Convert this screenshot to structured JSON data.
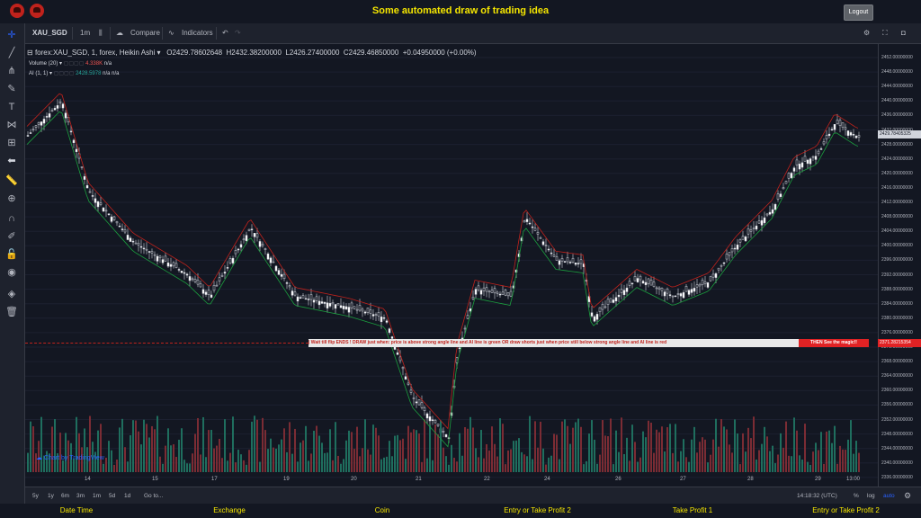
{
  "app": {
    "title": "Some automated draw of trading idea",
    "logout_label": "Logout"
  },
  "toolbar": {
    "symbol": "XAU_SGD",
    "interval": "1m",
    "compare_label": "Compare",
    "indicators_label": "Indicators"
  },
  "legend": {
    "main": "forex:XAU_SGD, 1, forex, Heikin Ashi ▾",
    "open": "O2429.78602648",
    "high": "H2432.38200000",
    "low": "L2426.27400000",
    "close": "C2429.46850000",
    "change": "+0.04950000 (+0.00%)",
    "volume_label": "Volume (20) ▾",
    "volume_value": "4.338K",
    "volume_na": "n/a",
    "ai_label": "AI (1, 1) ▾",
    "ai_value": "2428.5978",
    "ai_na1": "n/a",
    "ai_na2": "n/a"
  },
  "price_axis": {
    "labels": [
      "2452.00000000",
      "2448.00000000",
      "2444.00000000",
      "2440.00000000",
      "2436.00000000",
      "2432.00000000",
      "2428.00000000",
      "2424.00000000",
      "2420.00000000",
      "2416.00000000",
      "2412.00000000",
      "2408.00000000",
      "2404.00000000",
      "2400.00000000",
      "2396.00000000",
      "2392.00000000",
      "2388.00000000",
      "2384.00000000",
      "2380.00000000",
      "2376.00000000",
      "2372.00000000",
      "2368.00000000",
      "2364.00000000",
      "2360.00000000",
      "2356.00000000",
      "2352.00000000",
      "2348.00000000",
      "2344.00000000",
      "2340.00000000",
      "2336.00000000"
    ],
    "last_price": "2429.78405325",
    "marker_price": "2371.28215354"
  },
  "time_axis": {
    "labels": [
      "14",
      "15",
      "17",
      "19",
      "20",
      "21",
      "22",
      "24",
      "26",
      "27",
      "28",
      "29",
      "13:00"
    ]
  },
  "annotation": {
    "text": "|      Wait till flip ENDS   !   DRAW just when:  price is above strong angle line and AI line is green         OR          draw shorts just when price still below strong angle line and AI line is red",
    "cta": "THEN See the magic!!"
  },
  "bottom_bar": {
    "ranges": [
      "5y",
      "1y",
      "6m",
      "3m",
      "1m",
      "5d",
      "1d"
    ],
    "goto": "Go to...",
    "clock": "14:18:32 (UTC)",
    "percent": "%",
    "log": "log",
    "auto": "auto"
  },
  "watermark": "Chart by TradingView",
  "footer": {
    "items": [
      "Date Time",
      "Exchange",
      "Coin",
      "Entry or Take Profit 2",
      "Take Profit 1",
      "Entry or Take Profit 2"
    ]
  },
  "colors": {
    "accent_yellow": "#f5e600",
    "bull": "#26a69a",
    "bear": "#ef5350",
    "ai_red": "#c0221c",
    "ai_green": "#1b9e3e"
  }
}
